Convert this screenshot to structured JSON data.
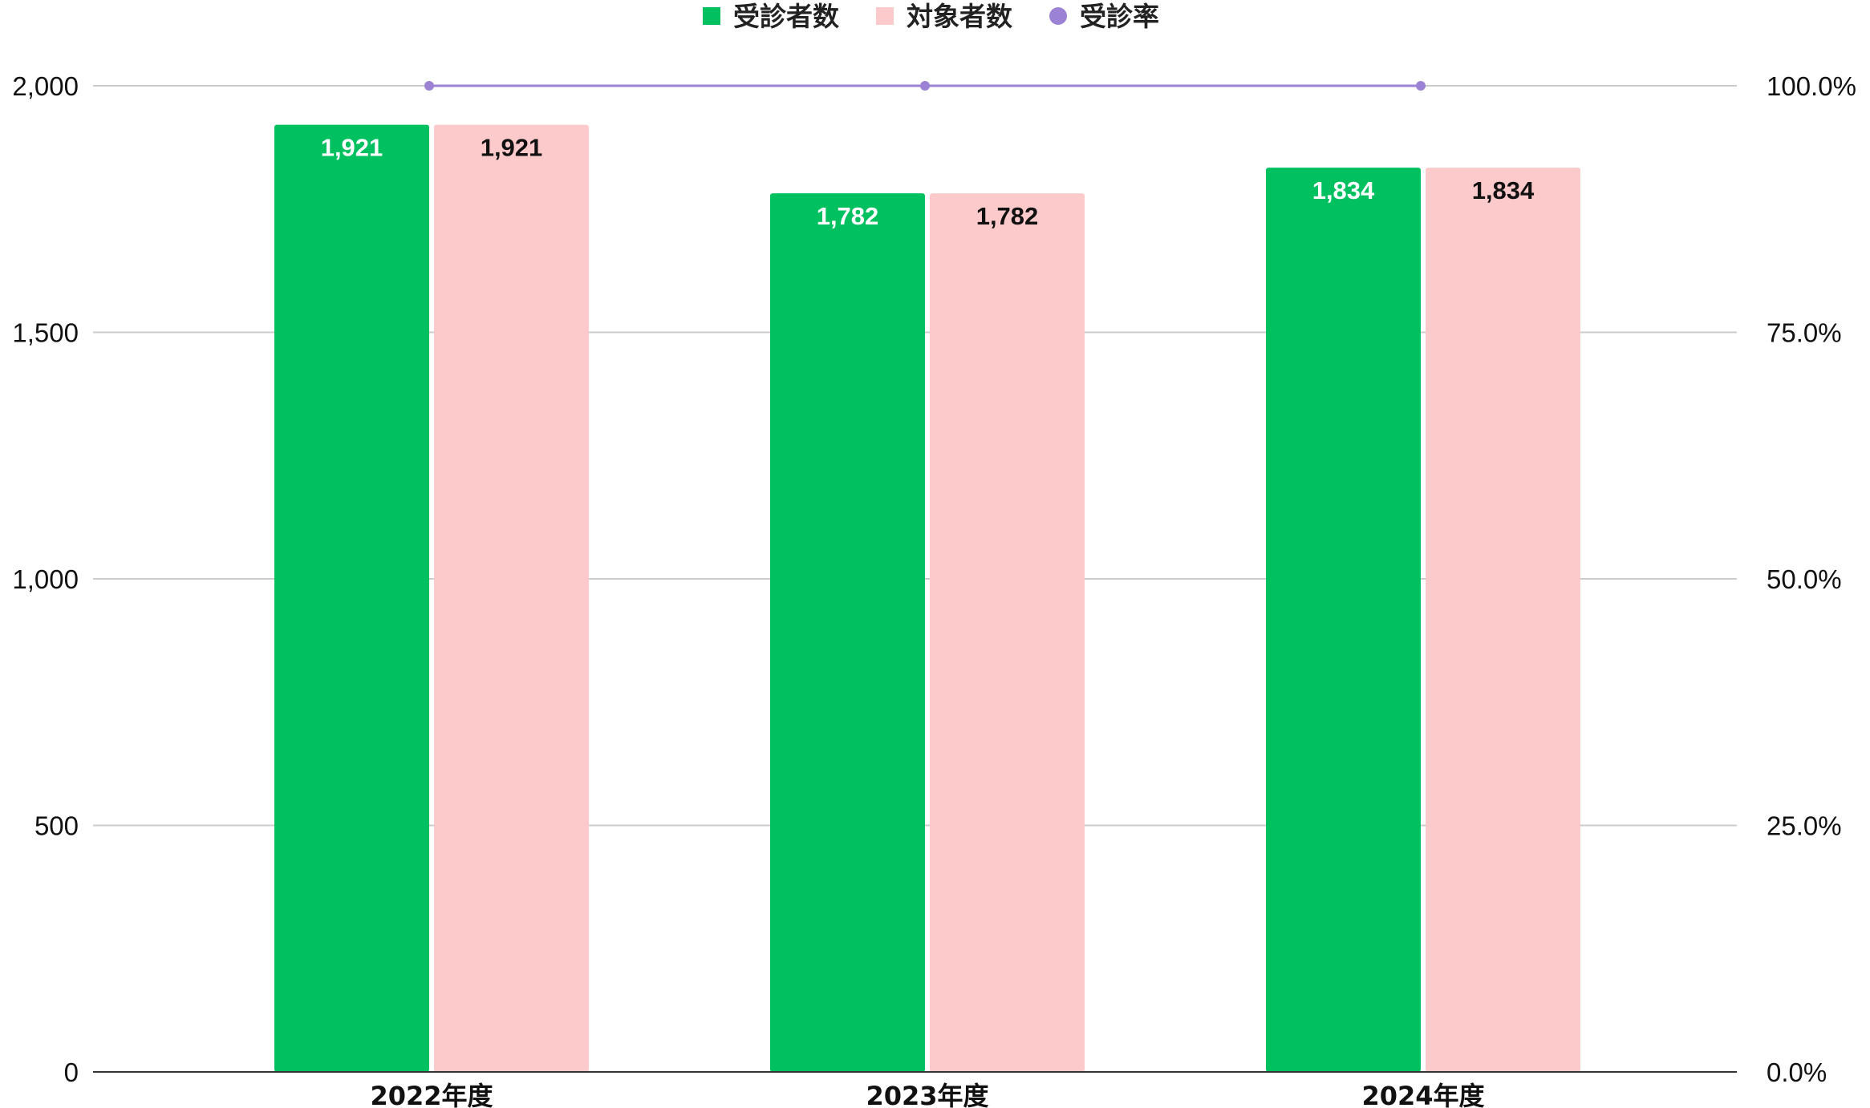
{
  "chart_data": {
    "type": "bar",
    "categories": [
      "2022年度",
      "2023年度",
      "2024年度"
    ],
    "series": [
      {
        "name": "受診者数",
        "values": [
          1921,
          1782,
          1834
        ],
        "color": "#00c060",
        "label_color": "#ffffff",
        "axis": "left",
        "kind": "bar"
      },
      {
        "name": "対象者数",
        "values": [
          1921,
          1782,
          1834
        ],
        "color": "#fdcacb",
        "label_color": "#111111",
        "axis": "left",
        "kind": "bar"
      },
      {
        "name": "受診率",
        "values": [
          100,
          100,
          100
        ],
        "color": "#9c82d4",
        "axis": "right",
        "kind": "line"
      }
    ],
    "data_labels": {
      "受診者数": [
        "1,921",
        "1,782",
        "1,834"
      ],
      "対象者数": [
        "1,921",
        "1,782",
        "1,834"
      ]
    },
    "ylim": [
      0,
      2000
    ],
    "y_ticks": [
      0,
      500,
      1000,
      1500,
      2000
    ],
    "y_tick_labels": [
      "0",
      "500",
      "1,000",
      "1,500",
      "2,000"
    ],
    "y2lim": [
      0,
      100
    ],
    "y2_ticks": [
      0,
      25,
      50,
      75,
      100
    ],
    "y2_tick_labels": [
      "0.0%",
      "25.0%",
      "50.0%",
      "75.0%",
      "100.0%"
    ],
    "legend_position": "top-center",
    "grid": true,
    "title": "",
    "xlabel": "",
    "ylabel": ""
  }
}
